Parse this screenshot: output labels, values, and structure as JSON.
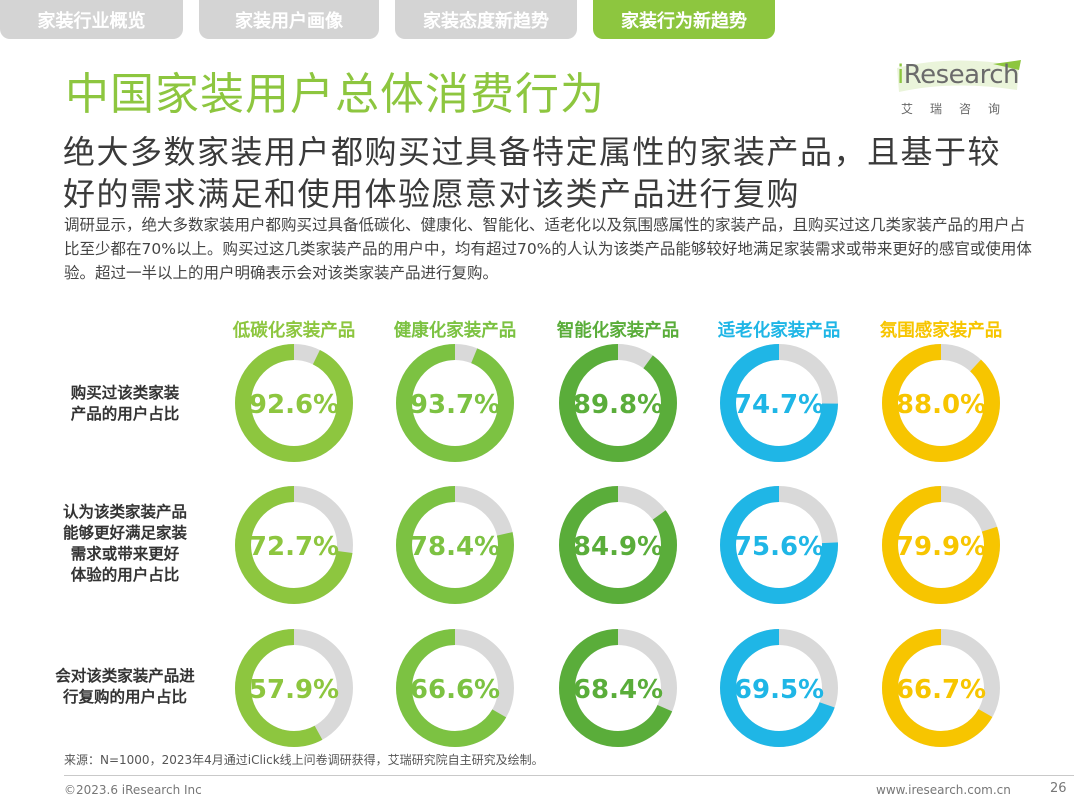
{
  "tabs": [
    {
      "label": "家装行业概览",
      "active": false
    },
    {
      "label": "家装用户画像",
      "active": false
    },
    {
      "label": "家装态度新趋势",
      "active": false
    },
    {
      "label": "家装行为新趋势",
      "active": true
    }
  ],
  "title": "中国家装用户总体消费行为",
  "logo": {
    "name": "iResearch",
    "sub": "艾瑞咨询"
  },
  "headline": "绝大多数家装用户都购买过具备特定属性的家装产品，且基于较好的需求满足和使用体验愿意对该类产品进行复购",
  "description": "调研显示，绝大多数家装用户都购买过具备低碳化、健康化、智能化、适老化以及氛围感属性的家装产品，且购买过这几类家装产品的用户占比至少都在70%以上。购买过这几类家装产品的用户中，均有超过70%的人认为该类产品能够较好地满足家装需求或带来更好的感官或使用体验。超过一半以上的用户明确表示会对该类家装产品进行复购。",
  "chart_data": {
    "type": "donut-grid",
    "categories": [
      "低碳化家装产品",
      "健康化家装产品",
      "智能化家装产品",
      "适老化家装产品",
      "氛围感家装产品"
    ],
    "category_colors": [
      "#8dc63f",
      "#7cc242",
      "#5aad3a",
      "#1fb6e6",
      "#f7c500"
    ],
    "track_color": "#d9d9d9",
    "rows": [
      {
        "label": "购买过该类家装产品的用户占比",
        "label_lines": [
          "购买过该类家装",
          "产品的用户占比"
        ],
        "values": [
          92.6,
          93.7,
          89.8,
          74.7,
          88.0
        ],
        "display": [
          "92.6%",
          "93.7%",
          "89.8%",
          "74.7%",
          "88.0%"
        ]
      },
      {
        "label": "认为该类家装产品能够更好满足家装需求或带来更好体验的用户占比",
        "label_lines": [
          "认为该类家装产品",
          "能够更好满足家装",
          "需求或带来更好",
          "体验的用户占比"
        ],
        "values": [
          72.7,
          78.4,
          84.9,
          75.6,
          79.9
        ],
        "display": [
          "72.7%",
          "78.4%",
          "84.9%",
          "75.6%",
          "79.9%"
        ]
      },
      {
        "label": "会对该类家装产品进行复购的用户占比",
        "label_lines": [
          "会对该类家装产品进",
          "行复购的用户占比"
        ],
        "values": [
          57.9,
          66.6,
          68.4,
          69.5,
          66.7
        ],
        "display": [
          "57.9%",
          "66.6%",
          "68.4%",
          "69.5%",
          "66.7%"
        ]
      }
    ]
  },
  "source": "来源：N=1000，2023年4月通过iClick线上问卷调研获得，艾瑞研究院自主研究及绘制。",
  "copyright": "©2023.6 iResearch Inc",
  "site": "www.iresearch.com.cn",
  "page_number": "26"
}
